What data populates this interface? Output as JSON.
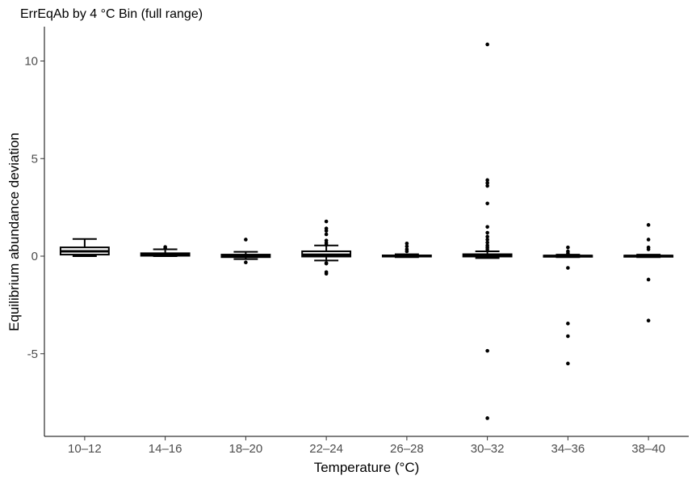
{
  "chart_data": {
    "type": "box",
    "title": "ErrEqAb by 4 °C Bin (full range)",
    "xlabel": "Temperature (°C)",
    "ylabel": "Equilibrium abundance deviation",
    "ylim": [
      -9.3,
      11.7
    ],
    "yticks": [
      10,
      5,
      0,
      -5
    ],
    "ytick_labels": [
      "10",
      "5",
      "0",
      "-5"
    ],
    "categories": [
      "10–12",
      "14–16",
      "18–20",
      "22–24",
      "26–28",
      "30–32",
      "34–36",
      "38–40"
    ],
    "boxes": [
      {
        "min": 0.0,
        "q1": 0.08,
        "median": 0.25,
        "q3": 0.45,
        "max": 0.88,
        "outliers": []
      },
      {
        "min": 0.0,
        "q1": 0.02,
        "median": 0.07,
        "q3": 0.15,
        "max": 0.35,
        "outliers": [
          0.4,
          0.47
        ]
      },
      {
        "min": -0.15,
        "q1": -0.05,
        "median": 0.02,
        "q3": 0.08,
        "max": 0.22,
        "outliers": [
          0.85,
          -0.32
        ]
      },
      {
        "min": -0.22,
        "q1": -0.02,
        "median": 0.07,
        "q3": 0.25,
        "max": 0.55,
        "outliers": [
          1.78,
          1.42,
          1.3,
          1.12,
          0.8,
          0.68,
          0.58,
          -0.35,
          -0.38,
          -0.82,
          -0.9
        ]
      },
      {
        "min": -0.05,
        "q1": -0.01,
        "median": 0.01,
        "q3": 0.04,
        "max": 0.1,
        "outliers": [
          0.35,
          0.5,
          0.65,
          0.25
        ]
      },
      {
        "min": -0.1,
        "q1": -0.02,
        "median": 0.03,
        "q3": 0.1,
        "max": 0.25,
        "outliers": [
          10.85,
          3.9,
          3.75,
          3.6,
          2.7,
          1.5,
          1.2,
          1.0,
          0.85,
          0.7,
          0.55,
          0.45,
          0.35,
          -4.85,
          -8.3
        ]
      },
      {
        "min": -0.05,
        "q1": -0.01,
        "median": 0.01,
        "q3": 0.03,
        "max": 0.08,
        "outliers": [
          0.45,
          0.25,
          0.15,
          -0.6,
          -3.45,
          -4.1,
          -5.5
        ]
      },
      {
        "min": -0.05,
        "q1": -0.01,
        "median": 0.01,
        "q3": 0.03,
        "max": 0.08,
        "outliers": [
          1.6,
          0.85,
          0.45,
          0.35,
          -1.2,
          -3.3
        ]
      }
    ]
  }
}
